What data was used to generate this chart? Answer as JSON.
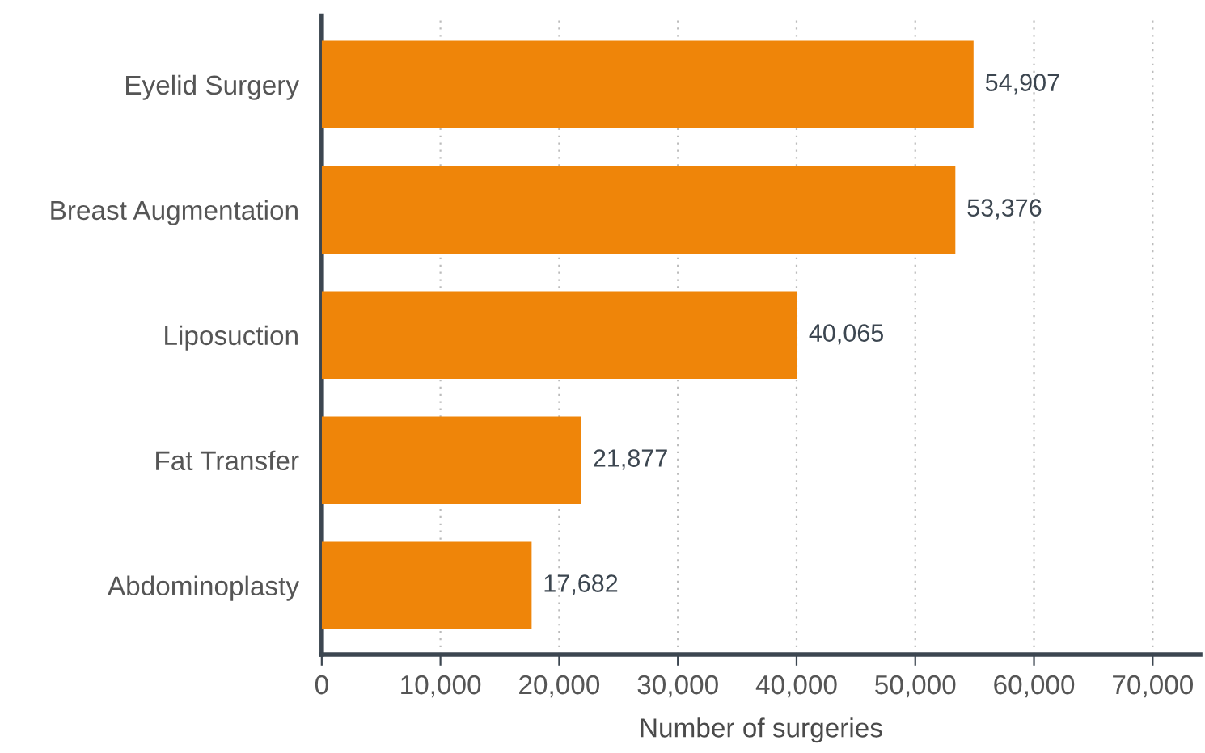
{
  "chart_data": {
    "type": "bar",
    "orientation": "horizontal",
    "xlabel": "Number of surgeries",
    "categories": [
      "Eyelid Surgery",
      "Breast Augmentation",
      "Liposuction",
      "Fat Transfer",
      "Abdominoplasty"
    ],
    "series": [
      {
        "color": "#ef8509",
        "values": [
          54907,
          53376,
          40065,
          21877,
          17682
        ]
      }
    ],
    "value_labels": [
      "54,907",
      "53,376",
      "40,065",
      "21,877",
      "17,682"
    ],
    "xlim": [
      0,
      74000
    ],
    "xticks": [
      0,
      {
        "value": 10000,
        "label": "10,000"
      },
      {
        "value": 20000,
        "label": "20,000"
      },
      {
        "value": 30000,
        "label": "30,000"
      },
      {
        "value": 40000,
        "label": "40,000"
      },
      {
        "value": 50000,
        "label": "50,000"
      },
      {
        "value": 60000,
        "label": "60,000"
      },
      {
        "value": 70000,
        "label": "70,000"
      }
    ],
    "grid": "x",
    "legend": false
  }
}
